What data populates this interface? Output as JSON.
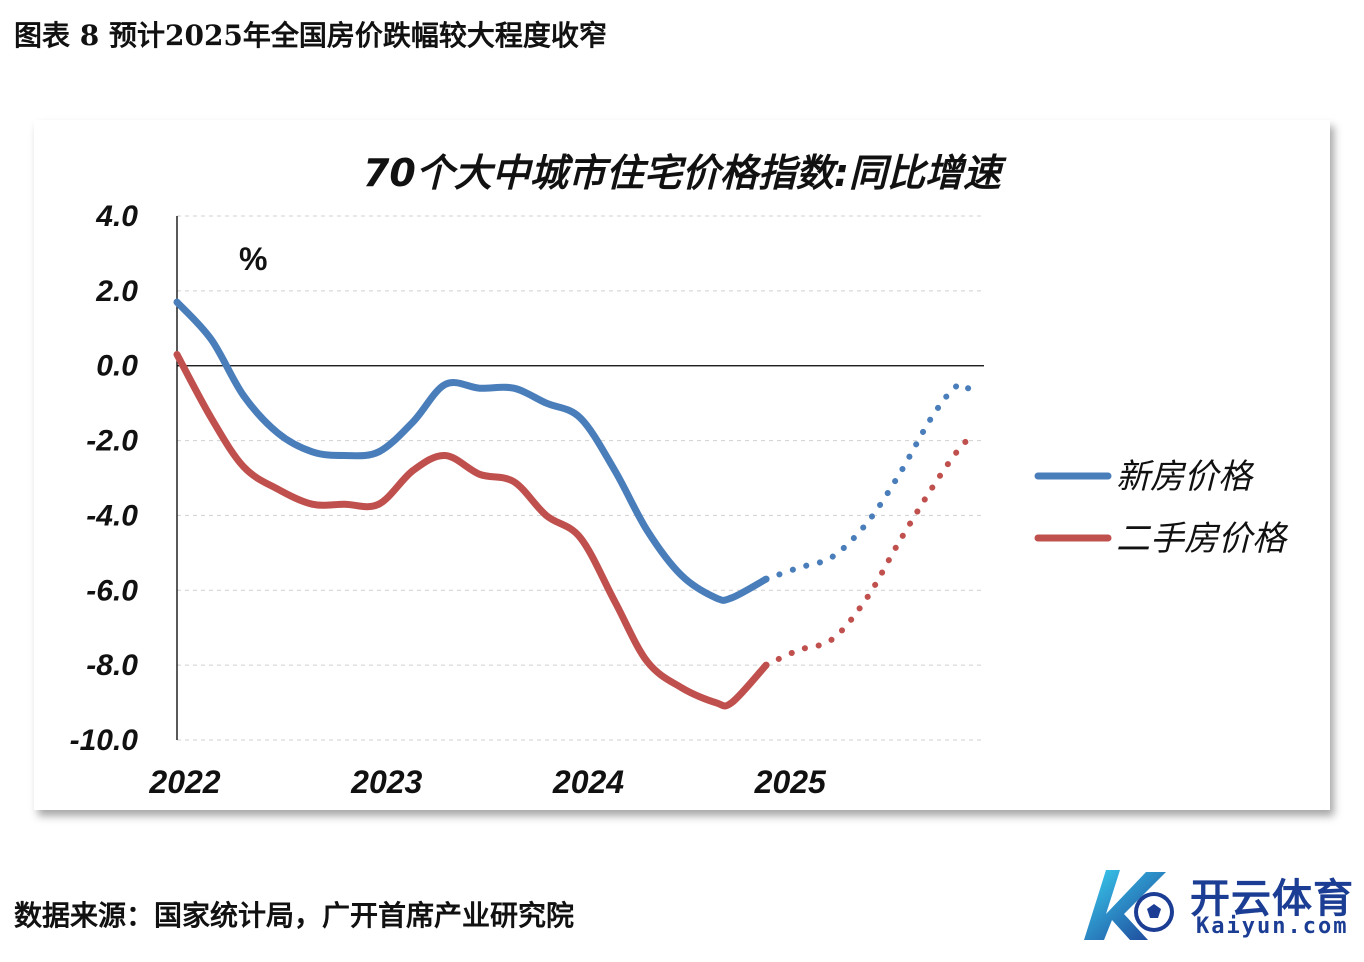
{
  "figure_title": "图表 8 预计2025年全国房价跌幅较大程度收窄",
  "source_note": "数据来源：国家统计局，广开首席产业研究院",
  "logo": {
    "cn": "开云体育",
    "en": "Kaiyun.com",
    "icon": "soccer-ball-k-logo"
  },
  "colors": {
    "new_house": "#4a7ebb",
    "second_hand": "#c0504d",
    "axis": "#000000",
    "grid": "#d0d0d0"
  },
  "chart_data": {
    "type": "line",
    "title": "70个大中城市住宅价格指数:同比增速",
    "unit_label": "%",
    "ylim": [
      -10,
      4
    ],
    "yticks": [
      "4.0",
      "2.0",
      "0.0",
      "-2.0",
      "-4.0",
      "-6.0",
      "-8.0",
      "-10.0"
    ],
    "ytick_values": [
      4,
      2,
      0,
      -2,
      -4,
      -6,
      -8,
      -10
    ],
    "xlim": [
      2022,
      2026
    ],
    "xticks": [
      "2022",
      "2023",
      "2024",
      "2025"
    ],
    "xtick_values": [
      2022,
      2023,
      2024,
      2025
    ],
    "grid": true,
    "legend_position": "right",
    "series": [
      {
        "name": "新房价格",
        "color_key": "new_house",
        "actual": {
          "x": [
            2022.0,
            2022.17,
            2022.33,
            2022.5,
            2022.67,
            2022.83,
            2023.0,
            2023.17,
            2023.33,
            2023.5,
            2023.67,
            2023.83,
            2024.0,
            2024.17,
            2024.33,
            2024.5,
            2024.67,
            2024.75,
            2024.92
          ],
          "y": [
            1.7,
            0.7,
            -0.8,
            -1.8,
            -2.3,
            -2.4,
            -2.3,
            -1.5,
            -0.5,
            -0.6,
            -0.6,
            -1.0,
            -1.4,
            -2.8,
            -4.4,
            -5.6,
            -6.2,
            -6.2,
            -5.7
          ]
        },
        "forecast": {
          "x": [
            2024.92,
            2025.08,
            2025.25,
            2025.42,
            2025.58,
            2025.75,
            2025.88,
            2025.96
          ],
          "y": [
            -5.7,
            -5.4,
            -5.1,
            -4.2,
            -2.9,
            -1.3,
            -0.5,
            -0.9
          ]
        }
      },
      {
        "name": "二手房价格",
        "color_key": "second_hand",
        "actual": {
          "x": [
            2022.0,
            2022.17,
            2022.33,
            2022.5,
            2022.67,
            2022.83,
            2023.0,
            2023.17,
            2023.33,
            2023.5,
            2023.67,
            2023.83,
            2024.0,
            2024.17,
            2024.33,
            2024.5,
            2024.67,
            2024.75,
            2024.92
          ],
          "y": [
            0.3,
            -1.4,
            -2.7,
            -3.3,
            -3.7,
            -3.7,
            -3.7,
            -2.8,
            -2.4,
            -2.9,
            -3.1,
            -4.0,
            -4.6,
            -6.3,
            -7.9,
            -8.6,
            -9.0,
            -9.0,
            -8.0
          ]
        },
        "forecast": {
          "x": [
            2024.92,
            2025.08,
            2025.25,
            2025.42,
            2025.58,
            2025.75,
            2025.88,
            2025.96
          ],
          "y": [
            -8.0,
            -7.6,
            -7.3,
            -6.2,
            -4.7,
            -3.2,
            -2.2,
            -1.8
          ]
        }
      }
    ]
  }
}
